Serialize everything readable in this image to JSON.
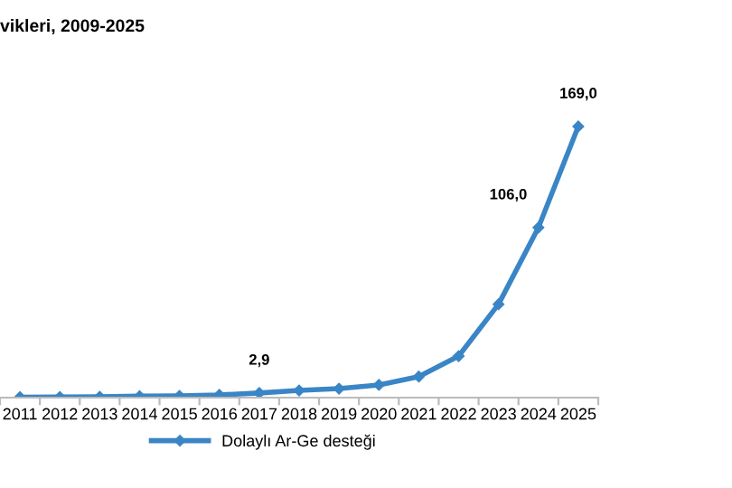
{
  "chart_data": {
    "type": "line",
    "title": "vikleri, 2009-2025",
    "categories": [
      "2011",
      "2012",
      "2013",
      "2014",
      "2015",
      "2016",
      "2017",
      "2018",
      "2019",
      "2020",
      "2021",
      "2022",
      "2023",
      "2024",
      "2025"
    ],
    "series": [
      {
        "name": "Dolaylı Ar-Ge desteği",
        "color": "#3a85c6",
        "values": [
          0.3,
          0.4,
          0.5,
          0.9,
          1.1,
          1.7,
          2.9,
          4.5,
          5.6,
          7.9,
          13.1,
          25.9,
          58.2,
          106.0,
          169.0
        ],
        "value_labels": [
          null,
          null,
          null,
          null,
          null,
          null,
          "2,9",
          null,
          null,
          null,
          null,
          null,
          null,
          "106,0",
          "169,0"
        ]
      }
    ],
    "marker": "diamond",
    "line_style": "solid",
    "legend": "bottom",
    "grid": false
  }
}
